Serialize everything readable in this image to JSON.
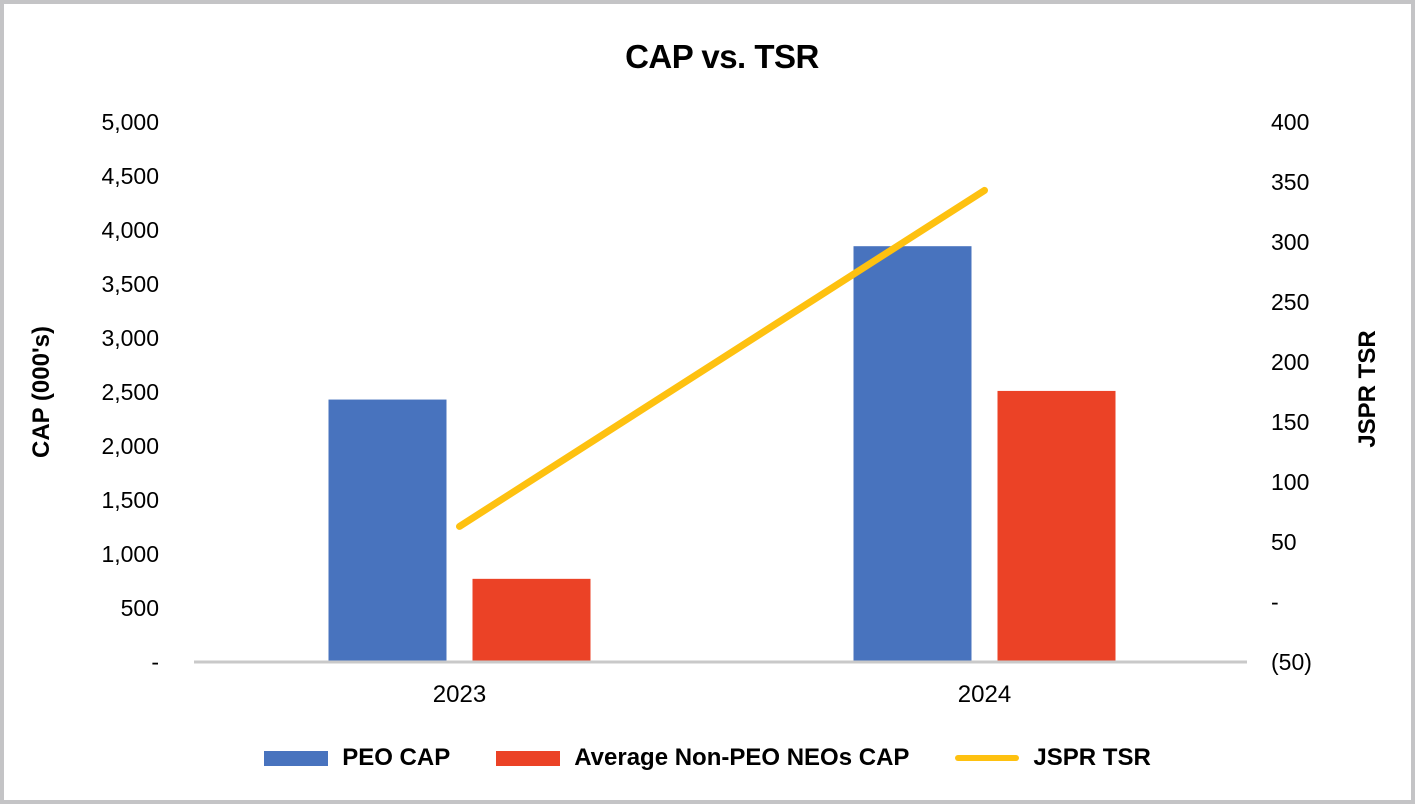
{
  "window": {
    "background": "#ffffff",
    "border_color": "#c4c4c6"
  },
  "chart_data": {
    "type": "combo-bar-line",
    "title": "CAP vs. TSR",
    "categories": [
      "2023",
      "2024"
    ],
    "series": [
      {
        "name": "PEO CAP",
        "type": "bar",
        "axis": "left",
        "color": "#4873be",
        "values": [
          2430,
          3850
        ]
      },
      {
        "name": "Average Non-PEO NEOs CAP",
        "type": "bar",
        "axis": "left",
        "color": "#eb4226",
        "values": [
          770,
          2510
        ]
      },
      {
        "name": "JSPR TSR",
        "type": "line",
        "axis": "right",
        "color": "#fec110",
        "values": [
          63,
          343
        ]
      }
    ],
    "left_axis": {
      "label": "CAP (000's)",
      "min": 0,
      "max": 5000,
      "step": 500,
      "tick_labels": [
        "-",
        "500",
        "1,000",
        "1,500",
        "2,000",
        "2,500",
        "3,000",
        "3,500",
        "4,000",
        "4,500",
        "5,000"
      ]
    },
    "right_axis": {
      "label": "JSPR TSR",
      "min": -50,
      "max": 400,
      "step": 50,
      "tick_labels": [
        "(50)",
        "-",
        "50",
        "100",
        "150",
        "200",
        "250",
        "300",
        "350",
        "400"
      ]
    },
    "x_axis_line_color": "#c9c9c9",
    "grid": false,
    "legend_position": "bottom"
  }
}
